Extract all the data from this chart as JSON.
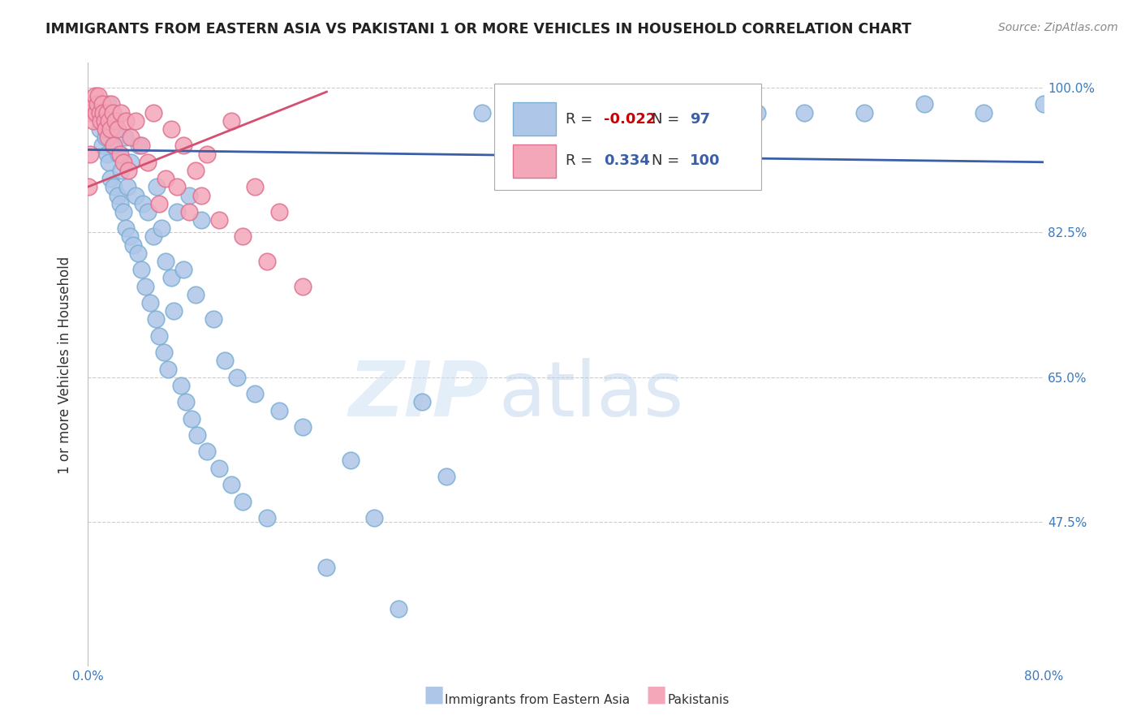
{
  "title": "IMMIGRANTS FROM EASTERN ASIA VS PAKISTANI 1 OR MORE VEHICLES IN HOUSEHOLD CORRELATION CHART",
  "source": "Source: ZipAtlas.com",
  "ylabel": "1 or more Vehicles in Household",
  "ytick_labels": [
    "100.0%",
    "82.5%",
    "65.0%",
    "47.5%"
  ],
  "ytick_values": [
    1.0,
    0.825,
    0.65,
    0.475
  ],
  "watermark_zip": "ZIP",
  "watermark_atlas": "atlas",
  "blue_scatter_x": [
    0.008,
    0.01,
    0.012,
    0.014,
    0.015,
    0.016,
    0.017,
    0.018,
    0.019,
    0.02,
    0.021,
    0.022,
    0.023,
    0.025,
    0.026,
    0.027,
    0.028,
    0.03,
    0.031,
    0.032,
    0.033,
    0.035,
    0.036,
    0.038,
    0.04,
    0.042,
    0.043,
    0.045,
    0.046,
    0.048,
    0.05,
    0.052,
    0.055,
    0.057,
    0.058,
    0.06,
    0.062,
    0.064,
    0.065,
    0.067,
    0.07,
    0.072,
    0.075,
    0.078,
    0.08,
    0.082,
    0.085,
    0.087,
    0.09,
    0.092,
    0.095,
    0.1,
    0.105,
    0.11,
    0.115,
    0.12,
    0.125,
    0.13,
    0.14,
    0.15,
    0.16,
    0.18,
    0.2,
    0.22,
    0.24,
    0.26,
    0.28,
    0.3,
    0.33,
    0.36,
    0.4,
    0.44,
    0.48,
    0.52,
    0.56,
    0.6,
    0.65,
    0.7,
    0.75,
    0.8
  ],
  "blue_scatter_y": [
    0.97,
    0.95,
    0.93,
    0.96,
    0.94,
    0.92,
    0.98,
    0.91,
    0.89,
    0.96,
    0.93,
    0.88,
    0.95,
    0.87,
    0.92,
    0.86,
    0.9,
    0.85,
    0.94,
    0.83,
    0.88,
    0.82,
    0.91,
    0.81,
    0.87,
    0.8,
    0.93,
    0.78,
    0.86,
    0.76,
    0.85,
    0.74,
    0.82,
    0.72,
    0.88,
    0.7,
    0.83,
    0.68,
    0.79,
    0.66,
    0.77,
    0.73,
    0.85,
    0.64,
    0.78,
    0.62,
    0.87,
    0.6,
    0.75,
    0.58,
    0.84,
    0.56,
    0.72,
    0.54,
    0.67,
    0.52,
    0.65,
    0.5,
    0.63,
    0.48,
    0.61,
    0.59,
    0.42,
    0.55,
    0.48,
    0.37,
    0.62,
    0.53,
    0.97,
    0.98,
    0.97,
    0.96,
    0.97,
    0.98,
    0.97,
    0.97,
    0.97,
    0.98,
    0.97,
    0.98
  ],
  "pink_scatter_x": [
    0.001,
    0.002,
    0.003,
    0.004,
    0.005,
    0.006,
    0.007,
    0.008,
    0.009,
    0.01,
    0.011,
    0.012,
    0.013,
    0.014,
    0.015,
    0.016,
    0.017,
    0.018,
    0.019,
    0.02,
    0.021,
    0.022,
    0.023,
    0.025,
    0.027,
    0.028,
    0.03,
    0.032,
    0.034,
    0.036,
    0.04,
    0.045,
    0.05,
    0.055,
    0.06,
    0.065,
    0.07,
    0.075,
    0.08,
    0.085,
    0.09,
    0.095,
    0.1,
    0.11,
    0.12,
    0.13,
    0.14,
    0.15,
    0.16,
    0.18
  ],
  "pink_scatter_y": [
    0.88,
    0.92,
    0.97,
    0.98,
    0.96,
    0.99,
    0.97,
    0.98,
    0.99,
    0.97,
    0.96,
    0.98,
    0.97,
    0.96,
    0.95,
    0.97,
    0.94,
    0.96,
    0.95,
    0.98,
    0.97,
    0.93,
    0.96,
    0.95,
    0.92,
    0.97,
    0.91,
    0.96,
    0.9,
    0.94,
    0.96,
    0.93,
    0.91,
    0.97,
    0.86,
    0.89,
    0.95,
    0.88,
    0.93,
    0.85,
    0.9,
    0.87,
    0.92,
    0.84,
    0.96,
    0.82,
    0.88,
    0.79,
    0.85,
    0.76
  ],
  "blue_line_x": [
    0.0,
    0.8
  ],
  "blue_line_y": [
    0.925,
    0.91
  ],
  "pink_line_x": [
    0.0,
    0.2
  ],
  "pink_line_y": [
    0.88,
    0.995
  ],
  "xmin": 0.0,
  "xmax": 0.8,
  "ymin": 0.3,
  "ymax": 1.03,
  "blue_R": "-0.022",
  "blue_N": "97",
  "pink_R": "0.334",
  "pink_N": "100",
  "blue_color": "#aec6e8",
  "blue_edge_color": "#7bafd4",
  "pink_color": "#f4a7b9",
  "pink_edge_color": "#e07090",
  "blue_line_color": "#3a5fa8",
  "pink_line_color": "#d45070",
  "axis_label_color": "#3a7abf",
  "grid_color": "#cccccc",
  "title_color": "#222222",
  "source_color": "#888888",
  "ylabel_color": "#333333",
  "legend_label1": "Immigrants from Eastern Asia",
  "legend_label2": "Pakistanis"
}
